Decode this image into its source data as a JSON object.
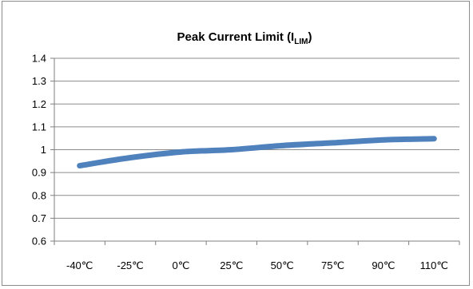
{
  "chart_data": {
    "type": "line",
    "title": "Peak Current Limit (I",
    "title_sub": "LIM",
    "title_end": ")",
    "categories": [
      "-40℃",
      "-25℃",
      "0℃",
      "25℃",
      "50℃",
      "75℃",
      "90℃",
      "110℃"
    ],
    "series": [
      {
        "values": [
          0.93,
          0.965,
          0.99,
          1.0,
          1.018,
          1.03,
          1.043,
          1.048
        ],
        "color": "#4f81bd"
      }
    ],
    "ylim": [
      0.6,
      1.4
    ],
    "yticks": [
      "0.6",
      "0.7",
      "0.8",
      "0.9",
      "1",
      "1.1",
      "1.2",
      "1.3",
      "1.4"
    ],
    "xlabel": "",
    "ylabel": "",
    "grid": true,
    "legend": "none"
  }
}
